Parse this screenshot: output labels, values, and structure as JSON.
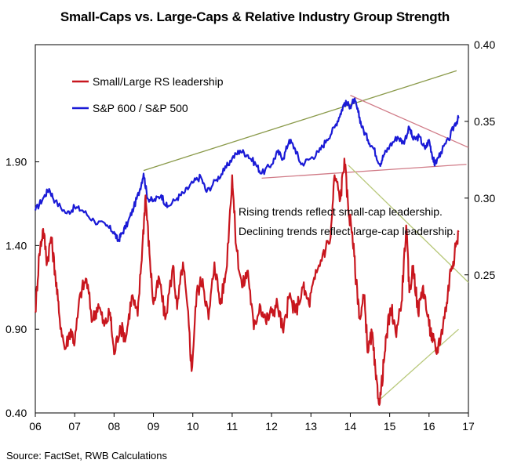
{
  "chart_data": {
    "type": "line",
    "title": "Small-Caps vs. Large-Caps & Relative Industry Group Strength",
    "x_ticks": [
      "06",
      "07",
      "08",
      "09",
      "10",
      "11",
      "12",
      "13",
      "14",
      "15",
      "16",
      "17"
    ],
    "xlim": [
      2006.0,
      2017.0
    ],
    "left_axis": {
      "ticks": [
        "0.40",
        "0.90",
        "1.40",
        "1.90"
      ],
      "ylim": [
        0.4,
        2.6
      ]
    },
    "right_axis": {
      "ticks": [
        "0.25",
        "0.30",
        "0.35",
        "0.40"
      ],
      "ylim": [
        0.16,
        0.4
      ]
    },
    "series": [
      {
        "name": "S&P 600 / S&P 500",
        "axis": "right",
        "color": "#1a1ad6",
        "points": [
          [
            2006.0,
            0.292
          ],
          [
            2006.2,
            0.3
          ],
          [
            2006.35,
            0.306
          ],
          [
            2006.5,
            0.298
          ],
          [
            2006.8,
            0.29
          ],
          [
            2007.0,
            0.294
          ],
          [
            2007.2,
            0.292
          ],
          [
            2007.5,
            0.285
          ],
          [
            2007.8,
            0.282
          ],
          [
            2008.0,
            0.278
          ],
          [
            2008.1,
            0.272
          ],
          [
            2008.2,
            0.277
          ],
          [
            2008.35,
            0.284
          ],
          [
            2008.5,
            0.294
          ],
          [
            2008.65,
            0.305
          ],
          [
            2008.75,
            0.316
          ],
          [
            2008.85,
            0.3
          ],
          [
            2009.0,
            0.298
          ],
          [
            2009.2,
            0.302
          ],
          [
            2009.35,
            0.294
          ],
          [
            2009.6,
            0.3
          ],
          [
            2009.8,
            0.304
          ],
          [
            2010.0,
            0.31
          ],
          [
            2010.2,
            0.314
          ],
          [
            2010.35,
            0.304
          ],
          [
            2010.6,
            0.312
          ],
          [
            2010.8,
            0.318
          ],
          [
            2011.0,
            0.326
          ],
          [
            2011.2,
            0.331
          ],
          [
            2011.4,
            0.328
          ],
          [
            2011.6,
            0.322
          ],
          [
            2011.75,
            0.316
          ],
          [
            2012.0,
            0.322
          ],
          [
            2012.15,
            0.33
          ],
          [
            2012.3,
            0.326
          ],
          [
            2012.45,
            0.338
          ],
          [
            2012.6,
            0.332
          ],
          [
            2012.75,
            0.322
          ],
          [
            2013.0,
            0.326
          ],
          [
            2013.2,
            0.33
          ],
          [
            2013.4,
            0.338
          ],
          [
            2013.6,
            0.346
          ],
          [
            2013.75,
            0.355
          ],
          [
            2013.85,
            0.362
          ],
          [
            2014.0,
            0.36
          ],
          [
            2014.1,
            0.364
          ],
          [
            2014.2,
            0.356
          ],
          [
            2014.3,
            0.346
          ],
          [
            2014.45,
            0.338
          ],
          [
            2014.6,
            0.332
          ],
          [
            2014.75,
            0.322
          ],
          [
            2014.85,
            0.328
          ],
          [
            2015.0,
            0.334
          ],
          [
            2015.2,
            0.34
          ],
          [
            2015.35,
            0.336
          ],
          [
            2015.5,
            0.346
          ],
          [
            2015.6,
            0.338
          ],
          [
            2015.75,
            0.34
          ],
          [
            2015.9,
            0.332
          ],
          [
            2016.0,
            0.338
          ],
          [
            2016.1,
            0.326
          ],
          [
            2016.15,
            0.322
          ],
          [
            2016.3,
            0.33
          ],
          [
            2016.5,
            0.338
          ],
          [
            2016.65,
            0.348
          ],
          [
            2016.75,
            0.352
          ]
        ]
      },
      {
        "name": "Small/Large RS leadership",
        "axis": "left",
        "color": "#c8161e",
        "points": [
          [
            2006.0,
            1.0
          ],
          [
            2006.1,
            1.35
          ],
          [
            2006.2,
            1.5
          ],
          [
            2006.3,
            1.3
          ],
          [
            2006.4,
            1.45
          ],
          [
            2006.5,
            1.25
          ],
          [
            2006.6,
            1.0
          ],
          [
            2006.75,
            0.78
          ],
          [
            2006.9,
            0.9
          ],
          [
            2007.0,
            0.82
          ],
          [
            2007.15,
            1.12
          ],
          [
            2007.3,
            1.2
          ],
          [
            2007.45,
            0.95
          ],
          [
            2007.6,
            1.05
          ],
          [
            2007.75,
            0.92
          ],
          [
            2007.9,
            1.0
          ],
          [
            2008.0,
            0.75
          ],
          [
            2008.15,
            0.92
          ],
          [
            2008.3,
            0.85
          ],
          [
            2008.45,
            1.1
          ],
          [
            2008.6,
            0.98
          ],
          [
            2008.72,
            1.4
          ],
          [
            2008.8,
            1.7
          ],
          [
            2008.9,
            1.35
          ],
          [
            2009.0,
            1.05
          ],
          [
            2009.15,
            1.2
          ],
          [
            2009.3,
            0.96
          ],
          [
            2009.5,
            1.28
          ],
          [
            2009.6,
            1.02
          ],
          [
            2009.75,
            1.3
          ],
          [
            2009.9,
            0.92
          ],
          [
            2009.97,
            0.65
          ],
          [
            2010.1,
            1.12
          ],
          [
            2010.25,
            1.2
          ],
          [
            2010.4,
            0.96
          ],
          [
            2010.55,
            1.3
          ],
          [
            2010.7,
            1.05
          ],
          [
            2010.85,
            1.25
          ],
          [
            2011.0,
            1.82
          ],
          [
            2011.1,
            1.4
          ],
          [
            2011.25,
            1.15
          ],
          [
            2011.4,
            1.25
          ],
          [
            2011.55,
            0.9
          ],
          [
            2011.7,
            1.05
          ],
          [
            2011.85,
            0.95
          ],
          [
            2012.0,
            1.0
          ],
          [
            2012.15,
            1.05
          ],
          [
            2012.3,
            0.88
          ],
          [
            2012.45,
            1.1
          ],
          [
            2012.6,
            1.0
          ],
          [
            2012.8,
            1.15
          ],
          [
            2012.95,
            1.05
          ],
          [
            2013.1,
            1.2
          ],
          [
            2013.3,
            1.35
          ],
          [
            2013.5,
            1.45
          ],
          [
            2013.6,
            1.82
          ],
          [
            2013.75,
            1.68
          ],
          [
            2013.85,
            1.92
          ],
          [
            2013.95,
            1.62
          ],
          [
            2014.05,
            1.48
          ],
          [
            2014.15,
            1.18
          ],
          [
            2014.25,
            0.96
          ],
          [
            2014.35,
            1.1
          ],
          [
            2014.45,
            0.76
          ],
          [
            2014.55,
            0.88
          ],
          [
            2014.65,
            0.6
          ],
          [
            2014.75,
            0.46
          ],
          [
            2014.85,
            0.7
          ],
          [
            2014.95,
            0.92
          ],
          [
            2015.05,
            1.02
          ],
          [
            2015.15,
            0.88
          ],
          [
            2015.3,
            1.06
          ],
          [
            2015.42,
            1.52
          ],
          [
            2015.5,
            1.12
          ],
          [
            2015.6,
            1.28
          ],
          [
            2015.72,
            1.0
          ],
          [
            2015.85,
            1.16
          ],
          [
            2016.0,
            0.92
          ],
          [
            2016.1,
            0.84
          ],
          [
            2016.18,
            0.76
          ],
          [
            2016.3,
            0.86
          ],
          [
            2016.45,
            1.06
          ],
          [
            2016.55,
            1.26
          ],
          [
            2016.65,
            1.35
          ],
          [
            2016.75,
            1.48
          ]
        ]
      }
    ],
    "trendlines": [
      {
        "axis": "right",
        "color": "#8a9a4a",
        "from": [
          2008.75,
          0.318
        ],
        "to": [
          2016.7,
          0.383
        ]
      },
      {
        "axis": "right",
        "color": "#d07a86",
        "from": [
          2011.75,
          0.313
        ],
        "to": [
          2016.95,
          0.322
        ]
      },
      {
        "axis": "right",
        "color": "#d07a86",
        "from": [
          2014.0,
          0.367
        ],
        "to": [
          2017.0,
          0.333
        ]
      },
      {
        "axis": "left",
        "color": "#b8c87a",
        "from": [
          2013.95,
          1.88
        ],
        "to": [
          2017.0,
          1.18
        ]
      },
      {
        "axis": "left",
        "color": "#b8c87a",
        "from": [
          2014.75,
          0.48
        ],
        "to": [
          2016.75,
          0.9
        ]
      }
    ],
    "annotations": [
      "Rising trends reflect small-cap leadership.",
      "Declining trends reflect large-cap leadership."
    ],
    "legend_position": "top-left",
    "source": "Source: FactSet, RWB Calculations"
  }
}
